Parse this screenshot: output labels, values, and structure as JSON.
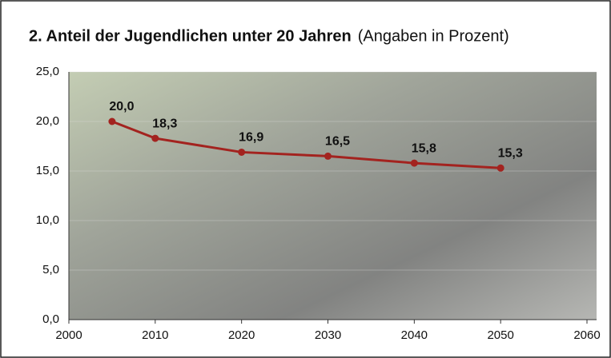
{
  "chart_data": {
    "type": "line",
    "title": "2. Anteil der Jugendlichen unter 20 Jahren",
    "subtitle": "(Angaben in Prozent)",
    "x": [
      2005,
      2010,
      2020,
      2030,
      2040,
      2050
    ],
    "series": [
      {
        "color": "#a3231f",
        "values": [
          20.0,
          18.3,
          16.9,
          16.5,
          15.8,
          15.3
        ],
        "value_labels": [
          "20,0",
          "18,3",
          "16,9",
          "16,5",
          "15,8",
          "15,3"
        ]
      }
    ],
    "xlim": [
      2000,
      2060
    ],
    "xticks": [
      2000,
      2010,
      2020,
      2030,
      2040,
      2050,
      2060
    ],
    "ylim": [
      0,
      25
    ],
    "yticks": [
      {
        "value": 0,
        "label": "0,0"
      },
      {
        "value": 5,
        "label": "5,0"
      },
      {
        "value": 10,
        "label": "10,0"
      },
      {
        "value": 15,
        "label": "15,0"
      },
      {
        "value": 20,
        "label": "20,0"
      },
      {
        "value": 25,
        "label": "25,0"
      }
    ]
  }
}
